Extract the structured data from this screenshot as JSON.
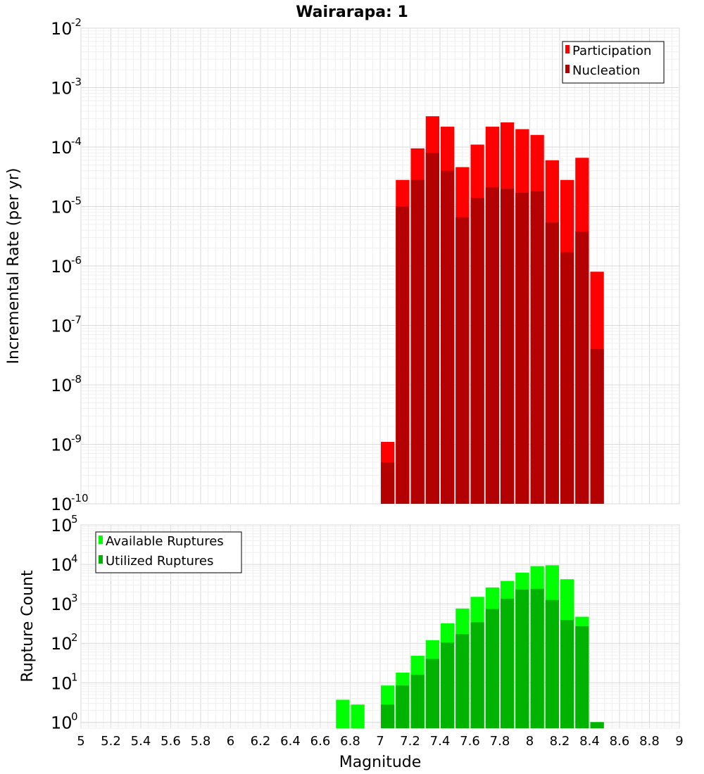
{
  "chart_data": [
    {
      "type": "bar",
      "title": "Wairarapa: 1",
      "ylabel": "Incremental Rate (per yr)",
      "yscale": "log",
      "ylim": [
        1e-10,
        0.01
      ],
      "xlim": [
        5,
        9
      ],
      "y_tick_exponents": [
        "-10",
        "-9",
        "-8",
        "-7",
        "-6",
        "-5",
        "-4",
        "-3",
        "-2"
      ],
      "legend_position": "top-right",
      "x": [
        7.05,
        7.15,
        7.25,
        7.35,
        7.45,
        7.55,
        7.65,
        7.75,
        7.85,
        7.95,
        8.05,
        8.15,
        8.25,
        8.35,
        8.45
      ],
      "series": [
        {
          "name": "Participation",
          "color": "#ff0000",
          "values": [
            1.1e-09,
            2.8e-05,
            9.5e-05,
            0.00033,
            0.00022,
            4.6e-05,
            0.00011,
            0.00022,
            0.00026,
            0.0002,
            0.00016,
            6e-05,
            2.8e-05,
            6.6e-05,
            8e-07
          ]
        },
        {
          "name": "Nucleation",
          "color": "#b30000",
          "values": [
            5e-10,
            1e-05,
            2.8e-05,
            8e-05,
            4e-05,
            6.6e-06,
            1.4e-05,
            2.1e-05,
            2e-05,
            1.7e-05,
            1.8e-05,
            5.4e-06,
            1.7e-06,
            3.8e-06,
            4e-08
          ]
        }
      ]
    },
    {
      "type": "bar",
      "ylabel": "Rupture Count",
      "xlabel": "Magnitude",
      "yscale": "log",
      "ylim": [
        0.7,
        100000
      ],
      "xlim": [
        5,
        9
      ],
      "y_tick_exponents": [
        "0",
        "1",
        "2",
        "3",
        "4",
        "5"
      ],
      "x_ticks": [
        "5",
        "5.2",
        "5.4",
        "5.6",
        "5.8",
        "6",
        "6.2",
        "6.4",
        "6.6",
        "6.8",
        "7",
        "7.2",
        "7.4",
        "7.6",
        "7.8",
        "8",
        "8.2",
        "8.4",
        "8.6",
        "8.8",
        "9"
      ],
      "legend_position": "top-left",
      "x": [
        6.75,
        6.85,
        7.05,
        7.15,
        7.25,
        7.35,
        7.45,
        7.55,
        7.65,
        7.75,
        7.85,
        7.95,
        8.05,
        8.15,
        8.25,
        8.35,
        8.45
      ],
      "series": [
        {
          "name": "Available Ruptures",
          "color": "#00ff00",
          "values": [
            3.7,
            2.8,
            8.5,
            18,
            48,
            120,
            320,
            760,
            1500,
            2600,
            3800,
            6200,
            9000,
            9500,
            4200,
            470,
            1
          ]
        },
        {
          "name": "Utilized Ruptures",
          "color": "#00b300",
          "values": [
            0,
            0,
            2.8,
            8.5,
            16,
            40,
            105,
            170,
            340,
            740,
            1350,
            2300,
            2400,
            1250,
            390,
            270,
            1
          ]
        }
      ]
    }
  ]
}
